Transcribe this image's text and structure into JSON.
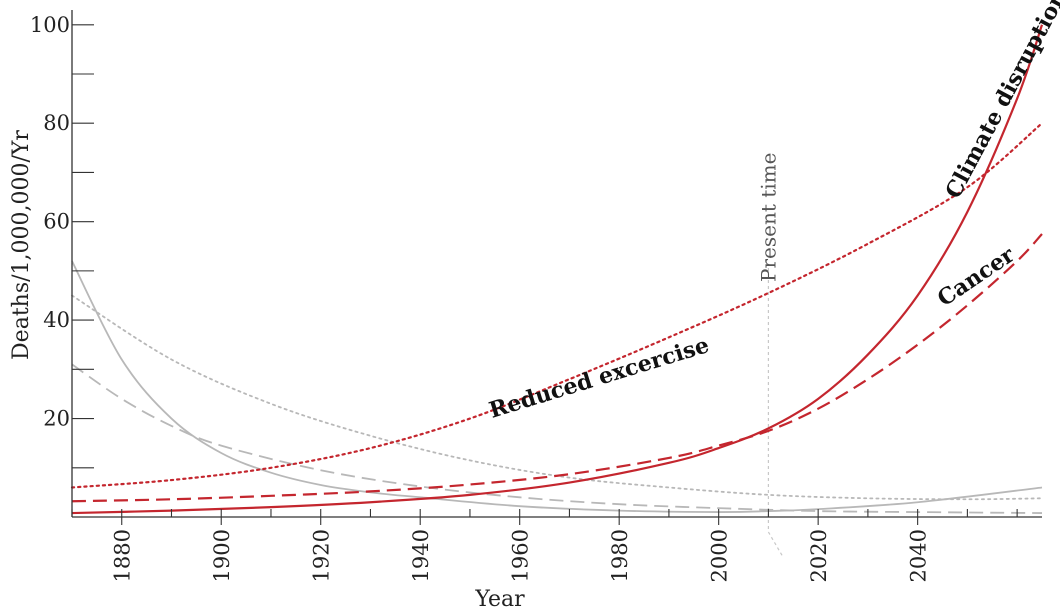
{
  "chart_data": {
    "type": "line",
    "xlabel": "Year",
    "ylabel": "Deaths/1,000,000/Yr",
    "xlim": [
      1870,
      2065
    ],
    "ylim": [
      0,
      103
    ],
    "x_ticks": [
      1880,
      1900,
      1920,
      1940,
      1960,
      1980,
      2000,
      2020,
      2040
    ],
    "y_ticks": [
      20,
      40,
      60,
      80,
      100
    ],
    "annotation": {
      "text": "Present time",
      "x": 2010
    },
    "series": [
      {
        "name": "Climate disruption",
        "label_text": "Climate disruption",
        "color": "#c4262e",
        "style": "solid",
        "x": [
          1870,
          1890,
          1910,
          1930,
          1950,
          1970,
          1990,
          2000,
          2010,
          2020,
          2030,
          2040,
          2050,
          2060,
          2065
        ],
        "y": [
          0.8,
          1.3,
          2.0,
          3.0,
          4.5,
          7.0,
          11.0,
          14.0,
          18.0,
          24.0,
          33.0,
          45.0,
          62.0,
          85.0,
          100.0
        ]
      },
      {
        "name": "Cancer",
        "label_text": "Cancer",
        "color": "#c4262e",
        "style": "dashed",
        "x": [
          1870,
          1890,
          1910,
          1930,
          1950,
          1970,
          1990,
          2000,
          2010,
          2020,
          2030,
          2040,
          2050,
          2060,
          2065
        ],
        "y": [
          3.2,
          3.6,
          4.3,
          5.2,
          6.6,
          8.7,
          12.0,
          14.5,
          17.5,
          22.0,
          28.0,
          35.0,
          43.0,
          52.0,
          57.5
        ]
      },
      {
        "name": "Reduced excercise",
        "label_text": "Reduced excercise",
        "color": "#c4262e",
        "style": "dotted",
        "x": [
          1870,
          1890,
          1910,
          1930,
          1950,
          1970,
          1990,
          2010,
          2030,
          2050,
          2065
        ],
        "y": [
          6.0,
          7.5,
          10.0,
          14.0,
          20.0,
          28.0,
          36.5,
          45.5,
          55.5,
          67.0,
          80.0
        ]
      },
      {
        "name": "",
        "color": "#b8b8b8",
        "style": "solid",
        "x": [
          1870,
          1880,
          1890,
          1900,
          1910,
          1920,
          1930,
          1940,
          1960,
          1980,
          2000,
          2010,
          2020,
          2040,
          2065
        ],
        "y": [
          52.0,
          32.0,
          20.0,
          13.0,
          9.0,
          6.5,
          5.0,
          4.0,
          2.2,
          1.3,
          1.0,
          1.2,
          1.6,
          3.0,
          6.0
        ]
      },
      {
        "name": "",
        "color": "#b8b8b8",
        "style": "dashed",
        "x": [
          1870,
          1880,
          1890,
          1900,
          1920,
          1940,
          1960,
          1980,
          2000,
          2020,
          2040,
          2065
        ],
        "y": [
          31.0,
          24.0,
          18.5,
          14.5,
          9.5,
          6.2,
          4.0,
          2.6,
          1.8,
          1.2,
          1.0,
          0.8
        ]
      },
      {
        "name": "",
        "color": "#b8b8b8",
        "style": "dotted",
        "x": [
          1870,
          1890,
          1910,
          1930,
          1950,
          1970,
          1990,
          2010,
          2030,
          2050,
          2065
        ],
        "y": [
          45.0,
          32.0,
          23.0,
          16.5,
          11.5,
          8.0,
          6.0,
          4.5,
          3.8,
          3.6,
          3.8
        ]
      }
    ]
  }
}
